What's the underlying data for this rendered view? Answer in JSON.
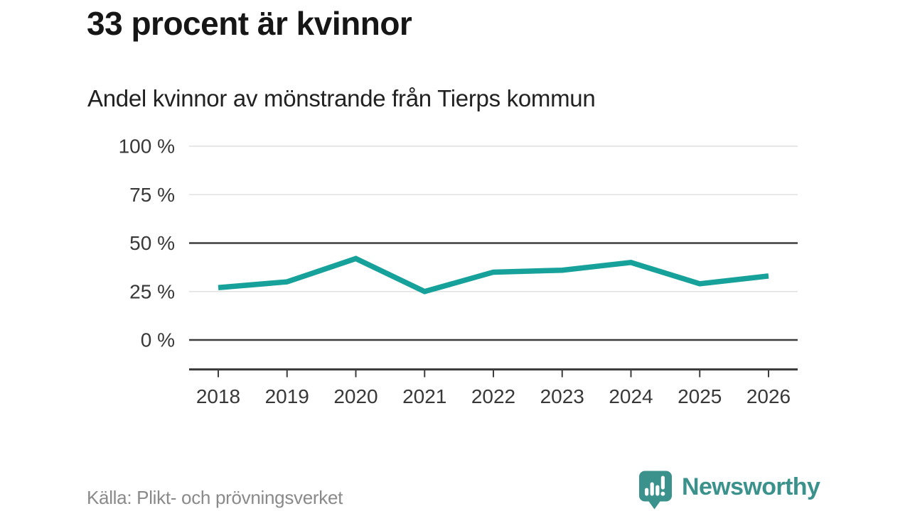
{
  "header": {
    "title": "33 procent är kvinnor",
    "subtitle": "Andel kvinnor av mönstrande från Tierps kommun"
  },
  "footer": {
    "source": "Källa: Plikt- och prövningsverket",
    "brand": "Newsworthy",
    "brand_icon": "bar-chart-speech-bubble-icon"
  },
  "colors": {
    "background": "#ffffff",
    "line": "#16a29a",
    "grid_light": "#e1e1e1",
    "grid_dark": "#3d3d3d",
    "axis_text": "#383838",
    "title_text": "#161616",
    "subtitle_text": "#212121",
    "source_text": "#8a8a8a",
    "brand": "#3b918c"
  },
  "chart_data": {
    "type": "line",
    "title": "33 procent är kvinnor",
    "subtitle": "Andel kvinnor av mönstrande från Tierps kommun",
    "categories": [
      "2018",
      "2019",
      "2020",
      "2021",
      "2022",
      "2023",
      "2024",
      "2025",
      "2026"
    ],
    "series": [
      {
        "name": "Andel kvinnor av mönstrande",
        "values": [
          27,
          30,
          42,
          25,
          35,
          36,
          40,
          29,
          33
        ]
      }
    ],
    "unit": "%",
    "xlabel": "",
    "ylabel": "",
    "ylim": [
      0,
      100
    ],
    "yticks": [
      100,
      75,
      50,
      25,
      0
    ],
    "ytick_suffix": " %",
    "emphasized_gridlines": [
      0,
      50
    ],
    "grid": "horizontal",
    "legend": "none"
  }
}
